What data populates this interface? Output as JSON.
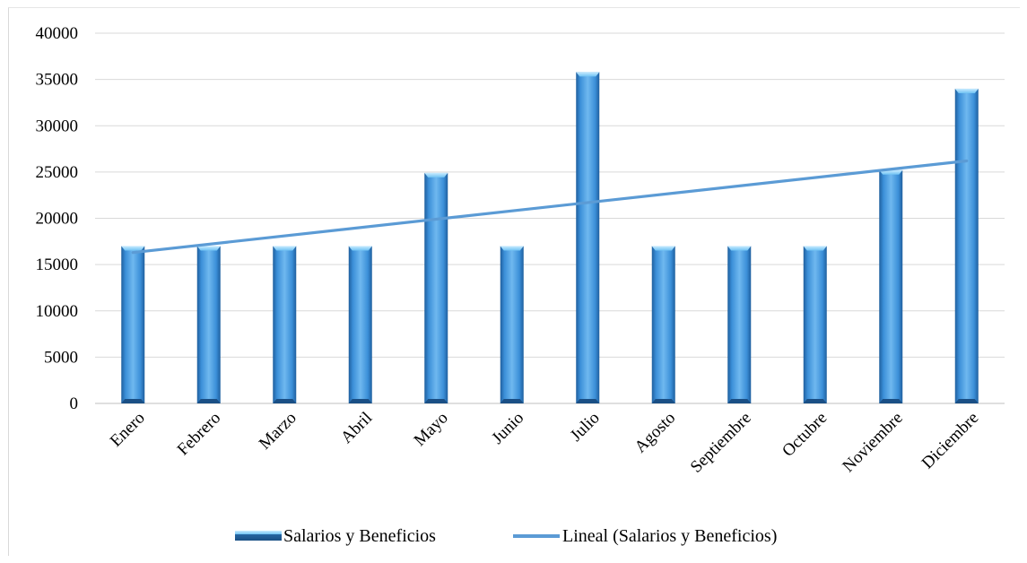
{
  "chart_data": {
    "type": "bar",
    "categories": [
      "Enero",
      "Febrero",
      "Marzo",
      "Abril",
      "Mayo",
      "Junio",
      "Julio",
      "Agosto",
      "Septiembre",
      "Octubre",
      "Noviembre",
      "Diciembre"
    ],
    "series": [
      {
        "name": "Salarios y Beneficios",
        "values": [
          17000,
          17000,
          17000,
          17000,
          24900,
          17000,
          35800,
          17000,
          17000,
          17000,
          25200,
          34000
        ],
        "color": "#3a8fd6"
      }
    ],
    "trendline": {
      "name": "Lineal (Salarios y Beneficios)",
      "type": "linear",
      "start": 16300,
      "end": 26200,
      "color": "#5b9bd5"
    },
    "ylim": [
      0,
      40000
    ],
    "yticks": [
      "0",
      "5000",
      "10000",
      "15000",
      "20000",
      "25000",
      "30000",
      "35000",
      "40000"
    ],
    "grid": true,
    "legend_position": "bottom",
    "title": "",
    "xlabel": "",
    "ylabel": ""
  }
}
